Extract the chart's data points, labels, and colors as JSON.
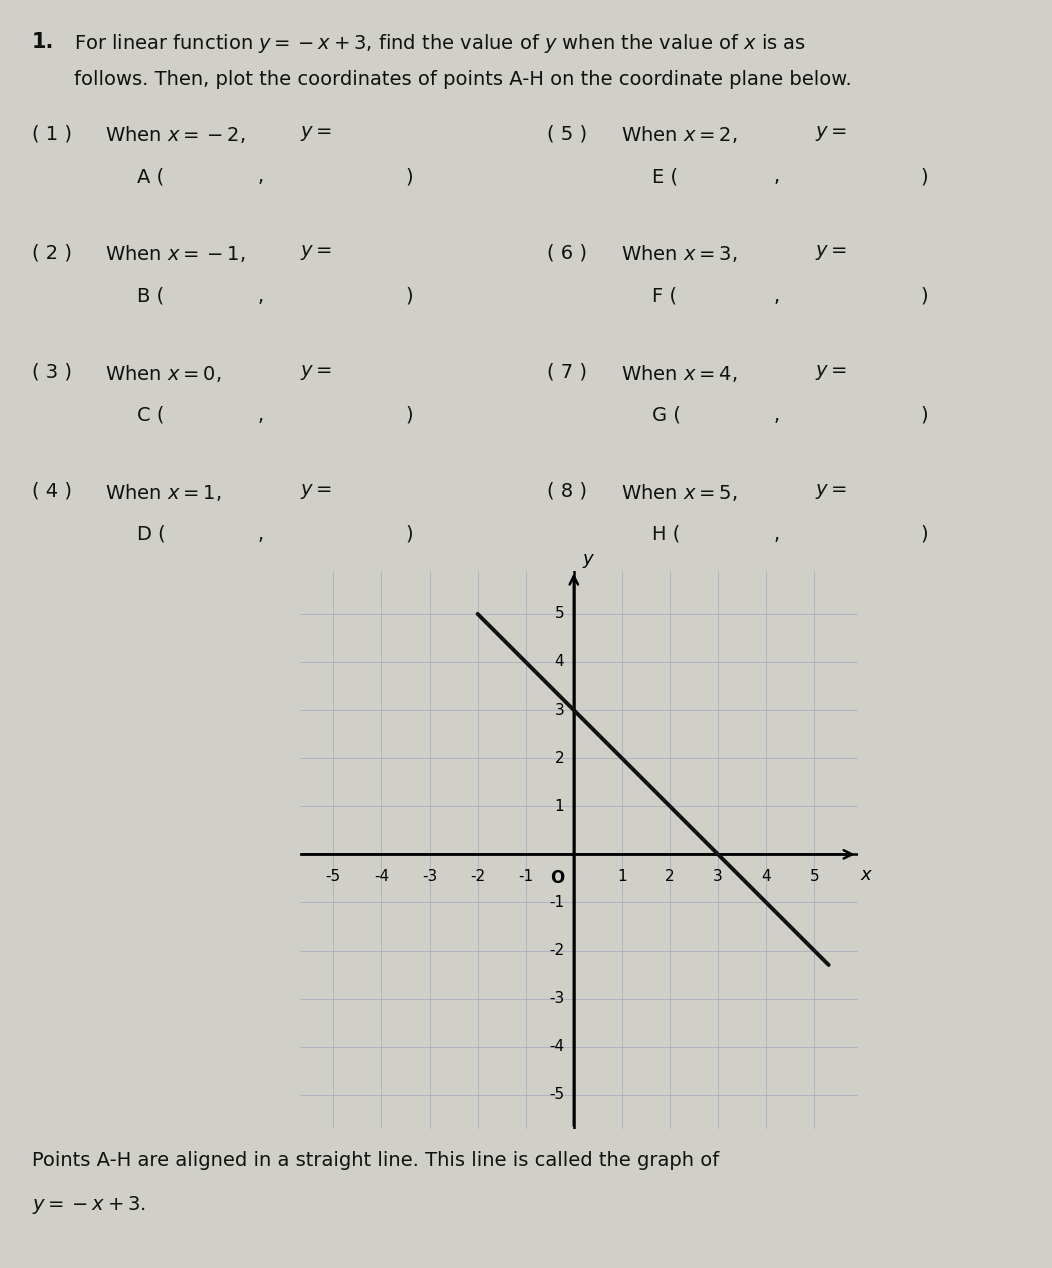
{
  "bg_color": "#d0cfc8",
  "text_color": "#111111",
  "title_num": "1.",
  "title_line1": "For linear function $y = -x + 3$, find the value of $y$ when the value of $x$ is as",
  "title_line2": "follows. Then, plot the coordinates of points A-H on the coordinate plane below.",
  "rows": [
    {
      "left_num": "( 1 )",
      "left_when": "When $x = -2$,",
      "left_y": "$y =$",
      "left_pt": "A (",
      "right_num": "( 5 )",
      "right_when": "When $x = 2$,",
      "right_y": "$y =$",
      "right_pt": "E ("
    },
    {
      "left_num": "( 2 )",
      "left_when": "When $x = -1$,",
      "left_y": "$y =$",
      "left_pt": "B (",
      "right_num": "( 6 )",
      "right_when": "When $x = 3$,",
      "right_y": "$y =$",
      "right_pt": "F ("
    },
    {
      "left_num": "( 3 )",
      "left_when": "When $x = 0$,",
      "left_y": "$y =$",
      "left_pt": "C (",
      "right_num": "( 7 )",
      "right_when": "When $x = 4$,",
      "right_y": "$y =$",
      "right_pt": "G ("
    },
    {
      "left_num": "( 4 )",
      "left_when": "When $x = 1$,",
      "left_y": "$y =$",
      "left_pt": "D (",
      "right_num": "( 8 )",
      "right_when": "When $x = 5$,",
      "right_y": "$y =$",
      "right_pt": "H ("
    }
  ],
  "graph": {
    "xlim": [
      -5.7,
      5.9
    ],
    "ylim": [
      -5.7,
      5.9
    ],
    "xticks": [
      -5,
      -4,
      -3,
      -2,
      -1,
      1,
      2,
      3,
      4,
      5
    ],
    "yticks": [
      -5,
      -4,
      -3,
      -2,
      -1,
      1,
      2,
      3,
      4,
      5
    ],
    "line_x1": -2.0,
    "line_x2": 5.3,
    "line_color": "#111111",
    "line_width": 2.8,
    "grid_color": "#a8b0c0",
    "grid_lw": 0.6,
    "axis_lw": 1.8
  },
  "footer_line1": "Points A-H are aligned in a straight line. This line is called the graph of",
  "footer_line2": "$y = -x + 3$."
}
